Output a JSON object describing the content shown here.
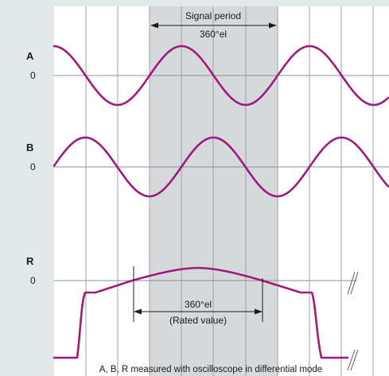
{
  "diagram": {
    "channels": [
      {
        "id": "a",
        "label": "A",
        "zero": "0"
      },
      {
        "id": "b",
        "label": "B",
        "zero": "0"
      },
      {
        "id": "r",
        "label": "R",
        "zero": "0"
      }
    ],
    "signal_period": {
      "line1": "Signal period",
      "line2": "360°el"
    },
    "rated_value": {
      "line1": "360°el",
      "line2": "(Rated value)"
    },
    "footnote": "A, B, R measured with oscilloscope in differential mode"
  },
  "colors": {
    "background": "#e3e8ea",
    "plot_area": "#ffffff",
    "period_band": "#d6d9dc",
    "wave": "#a0197c",
    "grid": "#9ea3a7"
  }
}
